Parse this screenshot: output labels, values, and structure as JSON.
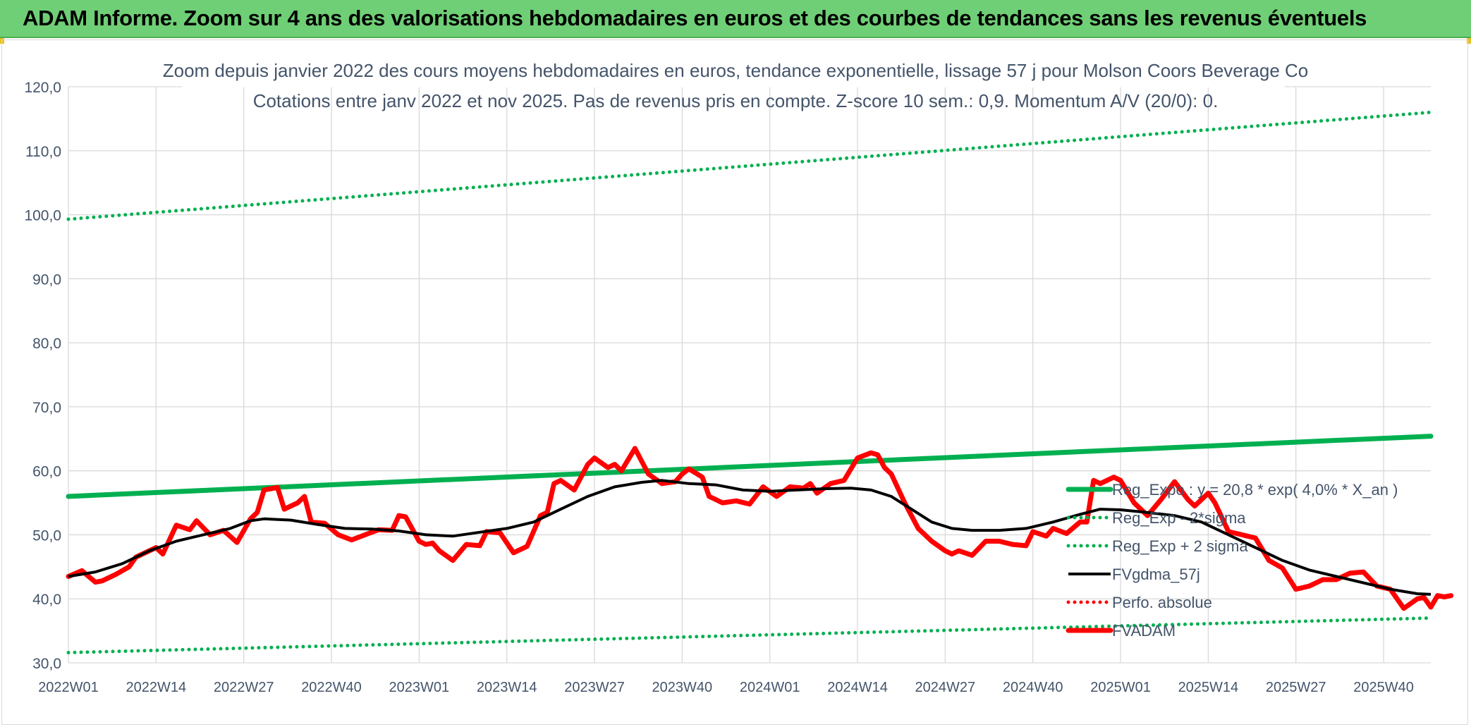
{
  "banner": {
    "title": "ADAM Informe. Zoom sur 4 ans des valorisations hebdomadaires en euros et des courbes de tendances sans les revenus éventuels",
    "color": "#6fcf76"
  },
  "chart_data": {
    "type": "line",
    "title": "Zoom depuis janvier 2022 des cours moyens hebdomadaires en euros, tendance exponentielle, lissage 57 j pour Molson Coors Beverage Co",
    "subtitle": "Cotations entre janv 2022 et nov 2025. Pas de revenus pris en compte. Z-score 10 sem.: 0,9. Momentum A/V (20/0): 0.",
    "xlabel": "",
    "ylabel": "",
    "ylim": [
      30,
      120
    ],
    "yticks": [
      "30,0",
      "40,0",
      "50,0",
      "60,0",
      "70,0",
      "80,0",
      "90,0",
      "100,0",
      "110,0",
      "120,0"
    ],
    "x_range_weeks": [
      0,
      202
    ],
    "xticks": [
      {
        "week": 0,
        "label": "2022W01"
      },
      {
        "week": 13,
        "label": "2022W14"
      },
      {
        "week": 26,
        "label": "2022W27"
      },
      {
        "week": 39,
        "label": "2022W40"
      },
      {
        "week": 52,
        "label": "2023W01"
      },
      {
        "week": 65,
        "label": "2023W14"
      },
      {
        "week": 78,
        "label": "2023W27"
      },
      {
        "week": 91,
        "label": "2023W40"
      },
      {
        "week": 104,
        "label": "2024W01"
      },
      {
        "week": 117,
        "label": "2024W14"
      },
      {
        "week": 130,
        "label": "2024W27"
      },
      {
        "week": 143,
        "label": "2024W40"
      },
      {
        "week": 156,
        "label": "2025W01"
      },
      {
        "week": 169,
        "label": "2025W14"
      },
      {
        "week": 182,
        "label": "2025W27"
      },
      {
        "week": 195,
        "label": "2025W40"
      }
    ],
    "grid": true,
    "legend_position": "right-bottom",
    "series": [
      {
        "name": "Reg_Expo : y = 20,8 * exp( 4,0% *  X_an )",
        "color": "#00b050",
        "style": "solid-thick",
        "points": [
          [
            0,
            56.0
          ],
          [
            202,
            65.4
          ]
        ]
      },
      {
        "name": "Reg_Exp - 2*sigma",
        "color": "#00b050",
        "style": "dotted",
        "points": [
          [
            0,
            31.6
          ],
          [
            202,
            37.0
          ]
        ]
      },
      {
        "name": "Reg_Exp + 2 sigma",
        "color": "#00b050",
        "style": "dotted",
        "points": [
          [
            0,
            99.3
          ],
          [
            202,
            116.0
          ]
        ]
      },
      {
        "name": "FVgdma_57j",
        "color": "#000000",
        "style": "solid",
        "points": [
          [
            0,
            43.5
          ],
          [
            4,
            44.2
          ],
          [
            8,
            45.5
          ],
          [
            12,
            47.5
          ],
          [
            16,
            49.0
          ],
          [
            20,
            50.0
          ],
          [
            24,
            51.0
          ],
          [
            27,
            52.2
          ],
          [
            29,
            52.5
          ],
          [
            33,
            52.3
          ],
          [
            37,
            51.6
          ],
          [
            41,
            51.0
          ],
          [
            45,
            50.9
          ],
          [
            49,
            50.6
          ],
          [
            53,
            50.0
          ],
          [
            57,
            49.8
          ],
          [
            61,
            50.4
          ],
          [
            65,
            51.0
          ],
          [
            69,
            52.0
          ],
          [
            73,
            54.0
          ],
          [
            77,
            56.0
          ],
          [
            81,
            57.5
          ],
          [
            85,
            58.2
          ],
          [
            88,
            58.5
          ],
          [
            92,
            58.0
          ],
          [
            96,
            57.8
          ],
          [
            100,
            57.0
          ],
          [
            104,
            56.8
          ],
          [
            108,
            57.0
          ],
          [
            112,
            57.2
          ],
          [
            116,
            57.3
          ],
          [
            119,
            57.0
          ],
          [
            122,
            56.0
          ],
          [
            125,
            54.0
          ],
          [
            128,
            52.0
          ],
          [
            131,
            51.0
          ],
          [
            134,
            50.7
          ],
          [
            138,
            50.7
          ],
          [
            142,
            51.0
          ],
          [
            146,
            52.0
          ],
          [
            150,
            53.2
          ],
          [
            153,
            54.0
          ],
          [
            156,
            53.9
          ],
          [
            160,
            53.5
          ],
          [
            164,
            53.0
          ],
          [
            168,
            52.0
          ],
          [
            172,
            50.0
          ],
          [
            176,
            48.0
          ],
          [
            180,
            46.0
          ],
          [
            184,
            44.5
          ],
          [
            188,
            43.5
          ],
          [
            192,
            42.5
          ],
          [
            196,
            41.5
          ],
          [
            200,
            40.8
          ],
          [
            202,
            40.7
          ]
        ]
      },
      {
        "name": "Perfo. absolue",
        "color": "#ff0000",
        "style": "dotted",
        "points": []
      },
      {
        "name": "FVADAM",
        "color": "#ff0000",
        "style": "solid-thick",
        "points": [
          [
            0,
            43.5
          ],
          [
            2,
            44.4
          ],
          [
            3,
            43.5
          ],
          [
            4,
            42.6
          ],
          [
            5,
            42.8
          ],
          [
            7,
            43.8
          ],
          [
            9,
            45.0
          ],
          [
            10,
            46.5
          ],
          [
            12,
            47.5
          ],
          [
            13,
            48.0
          ],
          [
            14,
            47.0
          ],
          [
            16,
            51.5
          ],
          [
            18,
            50.8
          ],
          [
            19,
            52.2
          ],
          [
            21,
            50.0
          ],
          [
            23,
            50.7
          ],
          [
            25,
            48.8
          ],
          [
            27,
            52.5
          ],
          [
            28,
            53.5
          ],
          [
            29,
            57.0
          ],
          [
            31,
            57.4
          ],
          [
            32,
            54.0
          ],
          [
            34,
            55.0
          ],
          [
            35,
            56.0
          ],
          [
            36,
            52.0
          ],
          [
            38,
            51.8
          ],
          [
            40,
            50.0
          ],
          [
            42,
            49.2
          ],
          [
            44,
            50.0
          ],
          [
            46,
            50.8
          ],
          [
            48,
            50.7
          ],
          [
            49,
            53.0
          ],
          [
            50,
            52.8
          ],
          [
            52,
            49.0
          ],
          [
            53,
            48.5
          ],
          [
            54,
            48.7
          ],
          [
            55,
            47.5
          ],
          [
            57,
            46.0
          ],
          [
            59,
            48.5
          ],
          [
            61,
            48.3
          ],
          [
            62,
            50.5
          ],
          [
            64,
            50.3
          ],
          [
            66,
            47.2
          ],
          [
            68,
            48.2
          ],
          [
            70,
            53.0
          ],
          [
            71,
            53.5
          ],
          [
            72,
            58.0
          ],
          [
            73,
            58.5
          ],
          [
            75,
            57.0
          ],
          [
            77,
            61.0
          ],
          [
            78,
            62.0
          ],
          [
            80,
            60.5
          ],
          [
            81,
            61.0
          ],
          [
            82,
            60.0
          ],
          [
            84,
            63.5
          ],
          [
            86,
            59.5
          ],
          [
            88,
            58.0
          ],
          [
            90,
            58.3
          ],
          [
            91,
            59.5
          ],
          [
            92,
            60.3
          ],
          [
            94,
            59.0
          ],
          [
            95,
            56.0
          ],
          [
            97,
            55.0
          ],
          [
            99,
            55.3
          ],
          [
            101,
            54.8
          ],
          [
            103,
            57.5
          ],
          [
            105,
            56.0
          ],
          [
            107,
            57.5
          ],
          [
            109,
            57.3
          ],
          [
            110,
            58.0
          ],
          [
            111,
            56.5
          ],
          [
            113,
            58.0
          ],
          [
            115,
            58.5
          ],
          [
            117,
            62.0
          ],
          [
            119,
            62.8
          ],
          [
            120,
            62.5
          ],
          [
            121,
            60.5
          ],
          [
            122,
            59.5
          ],
          [
            124,
            55.0
          ],
          [
            126,
            51.0
          ],
          [
            128,
            49.0
          ],
          [
            130,
            47.5
          ],
          [
            131,
            47.0
          ],
          [
            132,
            47.5
          ],
          [
            134,
            46.8
          ],
          [
            136,
            49.0
          ],
          [
            138,
            49.0
          ],
          [
            140,
            48.5
          ],
          [
            142,
            48.3
          ],
          [
            143,
            50.5
          ],
          [
            145,
            49.8
          ],
          [
            146,
            51.0
          ],
          [
            148,
            50.2
          ],
          [
            150,
            52.0
          ],
          [
            151,
            52.0
          ],
          [
            152,
            58.5
          ],
          [
            153,
            58.0
          ],
          [
            155,
            59.0
          ],
          [
            156,
            58.5
          ],
          [
            158,
            55.0
          ],
          [
            160,
            53.0
          ],
          [
            162,
            55.5
          ],
          [
            164,
            58.3
          ],
          [
            166,
            55.5
          ],
          [
            167,
            54.5
          ],
          [
            169,
            56.5
          ],
          [
            170,
            55.0
          ],
          [
            172,
            50.5
          ],
          [
            174,
            50.0
          ],
          [
            176,
            49.5
          ],
          [
            178,
            46.0
          ],
          [
            180,
            44.8
          ],
          [
            182,
            41.5
          ],
          [
            184,
            42.0
          ],
          [
            186,
            43.0
          ],
          [
            188,
            43.0
          ],
          [
            190,
            44.0
          ],
          [
            192,
            44.2
          ],
          [
            194,
            42.0
          ],
          [
            196,
            41.5
          ],
          [
            198,
            38.5
          ],
          [
            200,
            40.0
          ],
          [
            201,
            40.2
          ],
          [
            202,
            38.7
          ],
          [
            203,
            40.5
          ],
          [
            204,
            40.3
          ],
          [
            205,
            40.5
          ]
        ]
      }
    ]
  }
}
